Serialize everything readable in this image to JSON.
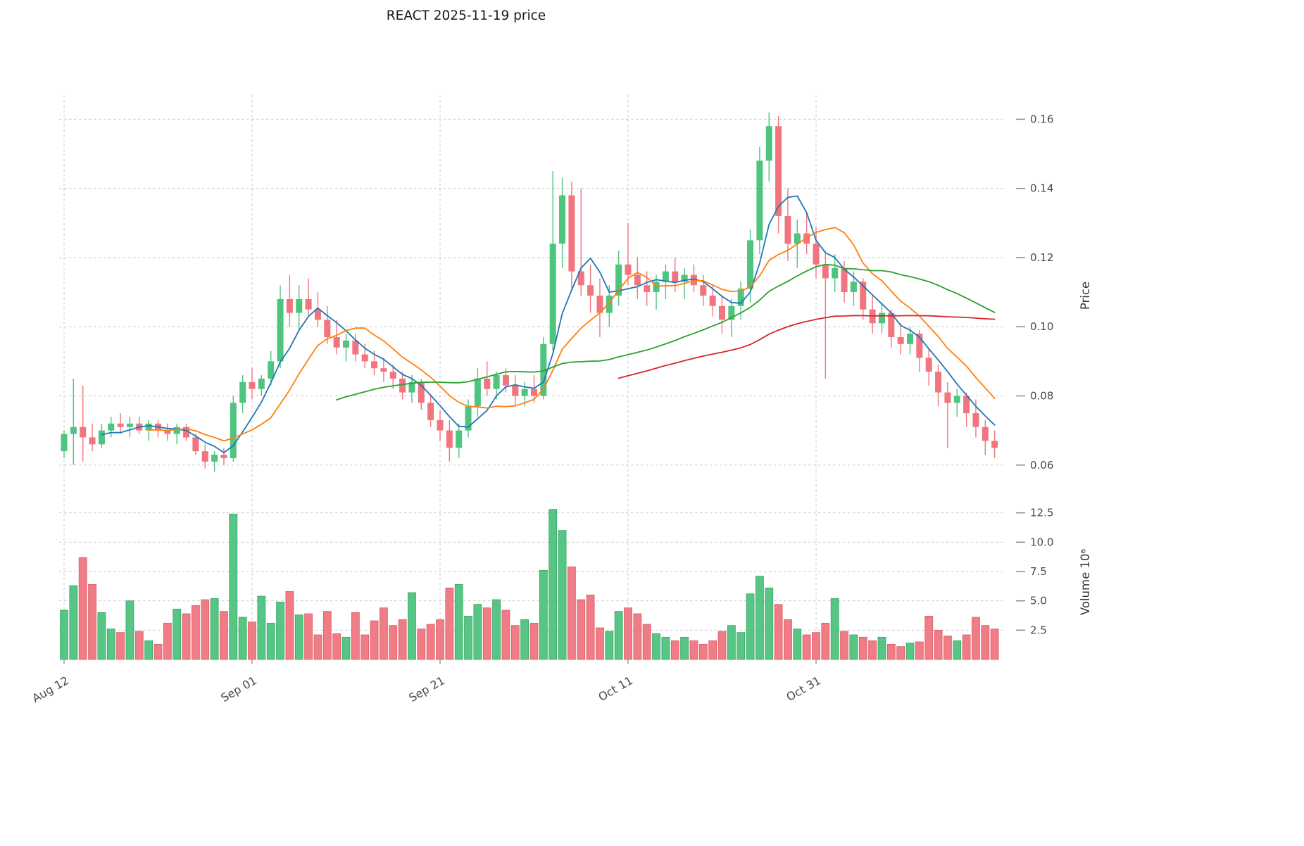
{
  "chart_data": {
    "type": "candlestick",
    "title": "REACT  2025-11-19  price",
    "x_axis": {
      "tick_labels": [
        "Aug 12",
        "Sep 01",
        "Sep 21",
        "Oct 11",
        "Oct 31"
      ],
      "tick_indices": [
        0,
        20,
        40,
        60,
        80
      ]
    },
    "price_axis": {
      "label": "Price",
      "ticks": [
        0.06,
        0.08,
        0.1,
        0.12,
        0.14,
        0.16
      ],
      "range": [
        0.051,
        0.167
      ]
    },
    "volume_axis": {
      "label": "Volume  10⁶",
      "ticks": [
        2.5,
        5.0,
        7.5,
        10.0,
        12.5
      ],
      "range": [
        0,
        13.2
      ]
    },
    "colors": {
      "up": "#4fc47f",
      "up_edge": "#2f9e5f",
      "down": "#f0757f",
      "down_edge": "#d95560",
      "grid": "#c9c9c9",
      "tick_text": "#4a4a4a",
      "title_text": "#1a1a1a"
    },
    "moving_averages": [
      {
        "window": 5,
        "color": "#1f77b4"
      },
      {
        "window": 10,
        "color": "#ff7f0e"
      },
      {
        "window": 30,
        "color": "#2ca02c"
      },
      {
        "window": 60,
        "color": "#d62728"
      }
    ],
    "ohlcv_columns": [
      "open",
      "high",
      "low",
      "close",
      "volume_millions"
    ],
    "ohlcv": [
      [
        0.064,
        0.07,
        0.062,
        0.069,
        4.2
      ],
      [
        0.069,
        0.085,
        0.06,
        0.071,
        6.3
      ],
      [
        0.071,
        0.083,
        0.061,
        0.068,
        8.7
      ],
      [
        0.068,
        0.072,
        0.064,
        0.066,
        6.4
      ],
      [
        0.066,
        0.072,
        0.065,
        0.07,
        4.0
      ],
      [
        0.07,
        0.074,
        0.068,
        0.072,
        2.6
      ],
      [
        0.072,
        0.075,
        0.069,
        0.071,
        2.3
      ],
      [
        0.071,
        0.074,
        0.068,
        0.072,
        5.0
      ],
      [
        0.072,
        0.074,
        0.069,
        0.07,
        2.4
      ],
      [
        0.07,
        0.073,
        0.067,
        0.072,
        1.6
      ],
      [
        0.072,
        0.073,
        0.068,
        0.07,
        1.3
      ],
      [
        0.07,
        0.072,
        0.067,
        0.069,
        3.1
      ],
      [
        0.069,
        0.072,
        0.066,
        0.071,
        4.3
      ],
      [
        0.071,
        0.072,
        0.067,
        0.068,
        3.9
      ],
      [
        0.068,
        0.069,
        0.063,
        0.064,
        4.6
      ],
      [
        0.064,
        0.066,
        0.059,
        0.061,
        5.1
      ],
      [
        0.061,
        0.064,
        0.058,
        0.063,
        5.2
      ],
      [
        0.063,
        0.065,
        0.06,
        0.062,
        4.1
      ],
      [
        0.062,
        0.08,
        0.061,
        0.078,
        12.4
      ],
      [
        0.078,
        0.086,
        0.075,
        0.084,
        3.6
      ],
      [
        0.084,
        0.088,
        0.079,
        0.082,
        3.2
      ],
      [
        0.082,
        0.086,
        0.08,
        0.085,
        5.4
      ],
      [
        0.085,
        0.093,
        0.083,
        0.09,
        3.1
      ],
      [
        0.09,
        0.112,
        0.088,
        0.108,
        4.9
      ],
      [
        0.108,
        0.115,
        0.1,
        0.104,
        5.8
      ],
      [
        0.104,
        0.112,
        0.099,
        0.108,
        3.8
      ],
      [
        0.108,
        0.114,
        0.103,
        0.105,
        3.9
      ],
      [
        0.105,
        0.11,
        0.1,
        0.102,
        2.1
      ],
      [
        0.102,
        0.106,
        0.095,
        0.097,
        4.1
      ],
      [
        0.097,
        0.102,
        0.092,
        0.094,
        2.2
      ],
      [
        0.094,
        0.098,
        0.09,
        0.096,
        1.9
      ],
      [
        0.096,
        0.098,
        0.09,
        0.092,
        4.0
      ],
      [
        0.092,
        0.095,
        0.088,
        0.09,
        2.1
      ],
      [
        0.09,
        0.093,
        0.086,
        0.088,
        3.3
      ],
      [
        0.088,
        0.091,
        0.084,
        0.087,
        4.4
      ],
      [
        0.087,
        0.089,
        0.082,
        0.085,
        2.9
      ],
      [
        0.085,
        0.087,
        0.079,
        0.081,
        3.4
      ],
      [
        0.081,
        0.086,
        0.078,
        0.084,
        5.7
      ],
      [
        0.084,
        0.085,
        0.076,
        0.078,
        2.6
      ],
      [
        0.078,
        0.08,
        0.071,
        0.073,
        3.0
      ],
      [
        0.073,
        0.076,
        0.067,
        0.07,
        3.4
      ],
      [
        0.07,
        0.073,
        0.061,
        0.065,
        6.1
      ],
      [
        0.065,
        0.072,
        0.062,
        0.07,
        6.4
      ],
      [
        0.07,
        0.079,
        0.068,
        0.077,
        3.7
      ],
      [
        0.077,
        0.088,
        0.074,
        0.085,
        4.7
      ],
      [
        0.085,
        0.09,
        0.08,
        0.082,
        4.4
      ],
      [
        0.082,
        0.087,
        0.079,
        0.086,
        5.1
      ],
      [
        0.086,
        0.088,
        0.081,
        0.083,
        4.2
      ],
      [
        0.083,
        0.086,
        0.077,
        0.08,
        2.9
      ],
      [
        0.08,
        0.084,
        0.077,
        0.082,
        3.4
      ],
      [
        0.082,
        0.086,
        0.078,
        0.08,
        3.1
      ],
      [
        0.08,
        0.097,
        0.079,
        0.095,
        7.6
      ],
      [
        0.095,
        0.145,
        0.093,
        0.124,
        12.8
      ],
      [
        0.124,
        0.143,
        0.117,
        0.138,
        11.0
      ],
      [
        0.138,
        0.142,
        0.111,
        0.116,
        7.9
      ],
      [
        0.116,
        0.14,
        0.109,
        0.112,
        5.1
      ],
      [
        0.112,
        0.118,
        0.104,
        0.109,
        5.5
      ],
      [
        0.109,
        0.114,
        0.097,
        0.104,
        2.7
      ],
      [
        0.104,
        0.112,
        0.1,
        0.109,
        2.4
      ],
      [
        0.109,
        0.122,
        0.106,
        0.118,
        4.1
      ],
      [
        0.118,
        0.13,
        0.112,
        0.115,
        4.4
      ],
      [
        0.115,
        0.12,
        0.108,
        0.112,
        3.9
      ],
      [
        0.112,
        0.116,
        0.106,
        0.11,
        3.0
      ],
      [
        0.11,
        0.115,
        0.105,
        0.113,
        2.2
      ],
      [
        0.113,
        0.118,
        0.108,
        0.116,
        1.9
      ],
      [
        0.116,
        0.12,
        0.11,
        0.113,
        1.6
      ],
      [
        0.113,
        0.117,
        0.108,
        0.115,
        1.9
      ],
      [
        0.115,
        0.118,
        0.11,
        0.112,
        1.6
      ],
      [
        0.112,
        0.115,
        0.106,
        0.109,
        1.3
      ],
      [
        0.109,
        0.112,
        0.103,
        0.106,
        1.6
      ],
      [
        0.106,
        0.109,
        0.098,
        0.102,
        2.4
      ],
      [
        0.102,
        0.108,
        0.097,
        0.106,
        2.9
      ],
      [
        0.106,
        0.113,
        0.102,
        0.111,
        2.3
      ],
      [
        0.111,
        0.128,
        0.107,
        0.125,
        5.6
      ],
      [
        0.125,
        0.152,
        0.121,
        0.148,
        7.1
      ],
      [
        0.148,
        0.162,
        0.142,
        0.158,
        6.1
      ],
      [
        0.158,
        0.161,
        0.127,
        0.132,
        4.7
      ],
      [
        0.132,
        0.14,
        0.119,
        0.124,
        3.4
      ],
      [
        0.124,
        0.131,
        0.117,
        0.127,
        2.6
      ],
      [
        0.127,
        0.133,
        0.121,
        0.124,
        2.1
      ],
      [
        0.124,
        0.129,
        0.114,
        0.118,
        2.3
      ],
      [
        0.118,
        0.122,
        0.085,
        0.114,
        3.1
      ],
      [
        0.114,
        0.121,
        0.11,
        0.117,
        5.2
      ],
      [
        0.117,
        0.119,
        0.107,
        0.11,
        2.4
      ],
      [
        0.11,
        0.116,
        0.106,
        0.113,
        2.1
      ],
      [
        0.113,
        0.114,
        0.102,
        0.105,
        1.9
      ],
      [
        0.105,
        0.109,
        0.098,
        0.101,
        1.6
      ],
      [
        0.101,
        0.107,
        0.098,
        0.104,
        1.9
      ],
      [
        0.104,
        0.105,
        0.094,
        0.097,
        1.3
      ],
      [
        0.097,
        0.101,
        0.092,
        0.095,
        1.1
      ],
      [
        0.095,
        0.1,
        0.092,
        0.098,
        1.4
      ],
      [
        0.098,
        0.099,
        0.087,
        0.091,
        1.5
      ],
      [
        0.091,
        0.094,
        0.083,
        0.087,
        3.7
      ],
      [
        0.087,
        0.089,
        0.077,
        0.081,
        2.5
      ],
      [
        0.081,
        0.084,
        0.065,
        0.078,
        2.0
      ],
      [
        0.078,
        0.082,
        0.074,
        0.08,
        1.6
      ],
      [
        0.08,
        0.081,
        0.071,
        0.075,
        2.1
      ],
      [
        0.075,
        0.079,
        0.068,
        0.071,
        3.6
      ],
      [
        0.071,
        0.073,
        0.063,
        0.067,
        2.9
      ],
      [
        0.067,
        0.07,
        0.062,
        0.065,
        2.6
      ]
    ]
  }
}
